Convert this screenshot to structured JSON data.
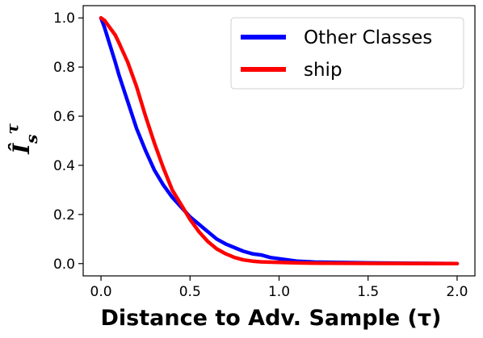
{
  "chart_data": {
    "type": "line",
    "title": "",
    "xlabel": "Distance to Adv. Sample (τ)",
    "ylabel": "Î_s^τ",
    "xlim": [
      -0.1,
      2.1
    ],
    "ylim": [
      -0.05,
      1.05
    ],
    "x_ticks": [
      "0.0",
      "0.5",
      "1.0",
      "1.5",
      "2.0"
    ],
    "y_ticks": [
      "0.0",
      "0.2",
      "0.4",
      "0.6",
      "0.8",
      "1.0"
    ],
    "grid": false,
    "legend_position": "top-right",
    "series": [
      {
        "name": "Other Classes",
        "color": "#0000ff",
        "x": [
          0,
          0.02,
          0.05,
          0.08,
          0.1,
          0.15,
          0.2,
          0.25,
          0.3,
          0.35,
          0.4,
          0.45,
          0.5,
          0.55,
          0.6,
          0.65,
          0.7,
          0.75,
          0.8,
          0.85,
          0.9,
          0.95,
          1.0,
          1.1,
          1.2,
          1.5,
          2.0
        ],
        "y": [
          1.0,
          0.96,
          0.89,
          0.82,
          0.77,
          0.66,
          0.55,
          0.46,
          0.38,
          0.32,
          0.27,
          0.23,
          0.19,
          0.16,
          0.13,
          0.1,
          0.08,
          0.065,
          0.05,
          0.04,
          0.035,
          0.025,
          0.02,
          0.01,
          0.006,
          0.003,
          0.0
        ]
      },
      {
        "name": "ship",
        "color": "#ff0000",
        "x": [
          0,
          0.02,
          0.05,
          0.08,
          0.1,
          0.15,
          0.2,
          0.25,
          0.3,
          0.35,
          0.4,
          0.45,
          0.5,
          0.55,
          0.6,
          0.65,
          0.7,
          0.75,
          0.8,
          0.85,
          0.9,
          1.0,
          1.1,
          1.2,
          1.5,
          2.0
        ],
        "y": [
          1.0,
          0.99,
          0.96,
          0.93,
          0.9,
          0.82,
          0.72,
          0.6,
          0.49,
          0.39,
          0.3,
          0.24,
          0.18,
          0.13,
          0.09,
          0.06,
          0.04,
          0.025,
          0.015,
          0.01,
          0.007,
          0.005,
          0.003,
          0.002,
          0.001,
          0.0
        ]
      }
    ]
  }
}
